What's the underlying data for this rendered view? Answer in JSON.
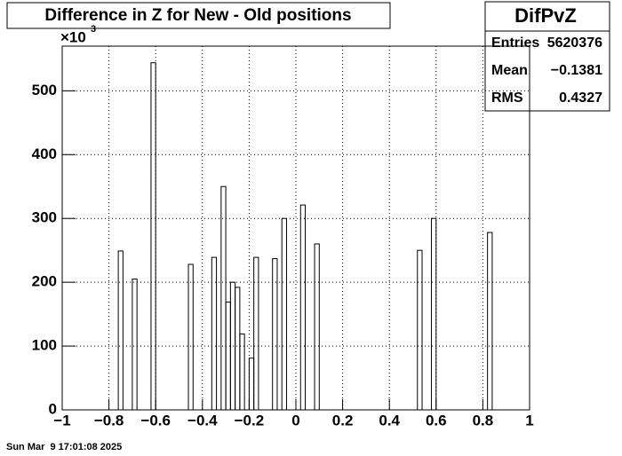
{
  "chart_data": {
    "type": "histogram",
    "title": "Difference in Z for New - Old positions",
    "y_multiplier": "×10",
    "y_multiplier_exponent": "3",
    "stats": {
      "name": "DifPvZ",
      "rows": [
        [
          "Entries",
          "5620376"
        ],
        [
          "Mean",
          "−0.1381"
        ],
        [
          "RMS",
          "0.4327"
        ]
      ]
    },
    "date": "Sun Mar  9 17:01:08 2025",
    "bins": [
      -1,
      -0.98,
      -0.96,
      -0.94,
      -0.92,
      -0.9,
      -0.88,
      -0.86,
      -0.84,
      -0.82,
      -0.8,
      -0.78,
      -0.76,
      -0.74,
      -0.72,
      -0.7,
      -0.68,
      -0.66,
      -0.64,
      -0.62,
      -0.6,
      -0.58,
      -0.56,
      -0.54,
      -0.52,
      -0.5,
      -0.48,
      -0.46,
      -0.44,
      -0.42,
      -0.4,
      -0.38,
      -0.36,
      -0.34,
      -0.32,
      -0.3,
      -0.28,
      -0.26,
      -0.24,
      -0.22,
      -0.2,
      -0.18,
      -0.16,
      -0.14,
      -0.12,
      -0.1,
      -0.08,
      -0.06,
      -0.04,
      -0.02,
      0,
      0.02,
      0.04,
      0.06,
      0.08,
      0.1,
      0.12,
      0.14,
      0.16,
      0.18,
      0.2,
      0.22,
      0.24,
      0.26,
      0.28,
      0.3,
      0.32,
      0.34,
      0.36,
      0.38,
      0.4,
      0.42,
      0.44,
      0.46,
      0.48,
      0.5,
      0.52,
      0.54,
      0.56,
      0.58,
      0.6,
      0.62,
      0.64,
      0.66,
      0.68,
      0.7,
      0.72,
      0.74,
      0.76,
      0.78,
      0.8,
      0.82,
      0.84,
      0.86,
      0.88,
      0.9,
      0.92,
      0.94,
      0.96,
      0.98,
      1
    ],
    "values": [
      0,
      0,
      0,
      0,
      0,
      0,
      0,
      0,
      0,
      0,
      0,
      0,
      249,
      0,
      0,
      205,
      0,
      0,
      0,
      544,
      0,
      0,
      0,
      0,
      0,
      0,
      0,
      228,
      0,
      0,
      0,
      0,
      239,
      0,
      350,
      169,
      200,
      192,
      119,
      0,
      81,
      239,
      0,
      0,
      0,
      237,
      0,
      300,
      0,
      0,
      0,
      321,
      0,
      0,
      260,
      0,
      0,
      0,
      0,
      0,
      0,
      0,
      0,
      0,
      0,
      0,
      0,
      0,
      0,
      0,
      0,
      0,
      0,
      0,
      0,
      0,
      250,
      0,
      0,
      300,
      0,
      0,
      0,
      0,
      0,
      0,
      0,
      0,
      0,
      0,
      0,
      278,
      0,
      0,
      0,
      0,
      0,
      0,
      0,
      0
    ],
    "color": "#000000",
    "xlim": [
      -1,
      1
    ],
    "xticks": [
      {
        "value": -1,
        "label": "−1"
      },
      {
        "value": -0.8,
        "label": "−0.8"
      },
      {
        "value": -0.6,
        "label": "−0.6"
      },
      {
        "value": -0.4,
        "label": "−0.4"
      },
      {
        "value": -0.2,
        "label": "−0.2"
      },
      0,
      0.2,
      0.4,
      0.6,
      0.8,
      1
    ],
    "ylim": [
      0,
      570
    ],
    "yticks": [
      0,
      100,
      200,
      300,
      400,
      500
    ],
    "grid": true
  }
}
